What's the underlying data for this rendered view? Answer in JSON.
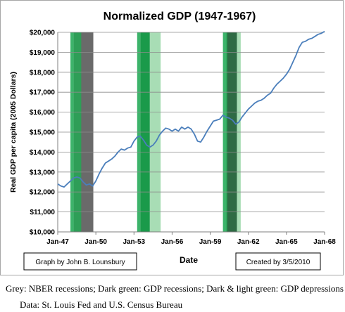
{
  "chart_data": {
    "type": "line",
    "title": "Normalized GDP (1947-1967)",
    "xlabel": "Date",
    "ylabel": "Real GDP per capita  (2005 Dollars)",
    "xlim": [
      1947.0,
      1968.0
    ],
    "ylim": [
      10000,
      20000
    ],
    "x_ticks": [
      {
        "value": 1947,
        "label": "Jan-47"
      },
      {
        "value": 1950,
        "label": "Jan-50"
      },
      {
        "value": 1953,
        "label": "Jan-53"
      },
      {
        "value": 1956,
        "label": "Jan-56"
      },
      {
        "value": 1959,
        "label": "Jan-59"
      },
      {
        "value": 1962,
        "label": "Jan-62"
      },
      {
        "value": 1965,
        "label": "Jan-65"
      },
      {
        "value": 1968,
        "label": "Jan-68"
      }
    ],
    "y_ticks": [
      {
        "value": 10000,
        "label": "$10,000"
      },
      {
        "value": 11000,
        "label": "$11,000"
      },
      {
        "value": 12000,
        "label": "$12,000"
      },
      {
        "value": 13000,
        "label": "$13,000"
      },
      {
        "value": 14000,
        "label": "$14,000"
      },
      {
        "value": 15000,
        "label": "$15,000"
      },
      {
        "value": 16000,
        "label": "$16,000"
      },
      {
        "value": 17000,
        "label": "$17,000"
      },
      {
        "value": 18000,
        "label": "$18,000"
      },
      {
        "value": 19000,
        "label": "$19,000"
      },
      {
        "value": 20000,
        "label": "$20,000"
      }
    ],
    "grid": {
      "horizontal": true,
      "vertical": false
    },
    "legend": "none",
    "shaded_bands": [
      {
        "kind": "gdp-recession",
        "start": 1948.25,
        "end": 1949.75,
        "color": "#2e9e57"
      },
      {
        "kind": "gdp-depression",
        "start": 1948.0,
        "end": 1948.25,
        "color": "#3cb36a"
      },
      {
        "kind": "nber-recession",
        "start": 1948.85,
        "end": 1949.8,
        "color": "#6a6a6a"
      },
      {
        "kind": "gdp-depression",
        "start": 1953.25,
        "end": 1953.5,
        "color": "#3cb36a"
      },
      {
        "kind": "gdp-recession",
        "start": 1953.5,
        "end": 1954.25,
        "color": "#1a9a4a"
      },
      {
        "kind": "gdp-depression",
        "start": 1954.25,
        "end": 1955.1,
        "color": "#a8ddb5"
      },
      {
        "kind": "gdp-depression",
        "start": 1960.0,
        "end": 1960.25,
        "color": "#3cb36a"
      },
      {
        "kind": "gdp-recession",
        "start": 1960.25,
        "end": 1961.1,
        "color": "#1f9e4e"
      },
      {
        "kind": "nber-recession",
        "start": 1960.35,
        "end": 1961.1,
        "color": "#2e6b44"
      },
      {
        "kind": "gdp-depression",
        "start": 1961.1,
        "end": 1961.4,
        "color": "#a8ddb5"
      }
    ],
    "series": [
      {
        "color": "#4a7ebb",
        "points": [
          [
            1947.0,
            12400
          ],
          [
            1947.25,
            12300
          ],
          [
            1947.5,
            12250
          ],
          [
            1947.75,
            12400
          ],
          [
            1948.0,
            12550
          ],
          [
            1948.25,
            12700
          ],
          [
            1948.5,
            12750
          ],
          [
            1948.75,
            12700
          ],
          [
            1949.0,
            12500
          ],
          [
            1949.25,
            12350
          ],
          [
            1949.5,
            12400
          ],
          [
            1949.75,
            12300
          ],
          [
            1950.0,
            12550
          ],
          [
            1950.25,
            12900
          ],
          [
            1950.5,
            13200
          ],
          [
            1950.75,
            13450
          ],
          [
            1951.0,
            13550
          ],
          [
            1951.25,
            13650
          ],
          [
            1951.5,
            13800
          ],
          [
            1951.75,
            14000
          ],
          [
            1952.0,
            14150
          ],
          [
            1952.25,
            14100
          ],
          [
            1952.5,
            14200
          ],
          [
            1952.75,
            14250
          ],
          [
            1953.0,
            14550
          ],
          [
            1953.25,
            14750
          ],
          [
            1953.5,
            14800
          ],
          [
            1953.75,
            14600
          ],
          [
            1954.0,
            14350
          ],
          [
            1954.25,
            14250
          ],
          [
            1954.5,
            14350
          ],
          [
            1954.75,
            14550
          ],
          [
            1955.0,
            14850
          ],
          [
            1955.25,
            15050
          ],
          [
            1955.5,
            15200
          ],
          [
            1955.75,
            15150
          ],
          [
            1956.0,
            15050
          ],
          [
            1956.25,
            15150
          ],
          [
            1956.5,
            15050
          ],
          [
            1956.75,
            15250
          ],
          [
            1957.0,
            15150
          ],
          [
            1957.25,
            15250
          ],
          [
            1957.5,
            15150
          ],
          [
            1957.75,
            14900
          ],
          [
            1958.0,
            14550
          ],
          [
            1958.25,
            14500
          ],
          [
            1958.5,
            14750
          ],
          [
            1958.75,
            15050
          ],
          [
            1959.0,
            15300
          ],
          [
            1959.25,
            15550
          ],
          [
            1959.5,
            15600
          ],
          [
            1959.75,
            15650
          ],
          [
            1960.0,
            15850
          ],
          [
            1960.25,
            15750
          ],
          [
            1960.5,
            15700
          ],
          [
            1960.75,
            15600
          ],
          [
            1961.0,
            15400
          ],
          [
            1961.25,
            15500
          ],
          [
            1961.5,
            15750
          ],
          [
            1961.75,
            15950
          ],
          [
            1962.0,
            16150
          ],
          [
            1962.25,
            16300
          ],
          [
            1962.5,
            16450
          ],
          [
            1962.75,
            16550
          ],
          [
            1963.0,
            16600
          ],
          [
            1963.25,
            16700
          ],
          [
            1963.5,
            16850
          ],
          [
            1963.75,
            16950
          ],
          [
            1964.0,
            17200
          ],
          [
            1964.25,
            17400
          ],
          [
            1964.5,
            17550
          ],
          [
            1964.75,
            17700
          ],
          [
            1965.0,
            17900
          ],
          [
            1965.25,
            18150
          ],
          [
            1965.5,
            18500
          ],
          [
            1965.75,
            18850
          ],
          [
            1966.0,
            19250
          ],
          [
            1966.25,
            19500
          ],
          [
            1966.5,
            19550
          ],
          [
            1966.75,
            19650
          ],
          [
            1967.0,
            19700
          ],
          [
            1967.25,
            19800
          ],
          [
            1967.5,
            19900
          ],
          [
            1967.75,
            19950
          ],
          [
            1968.0,
            20050
          ]
        ]
      }
    ],
    "annotations": {
      "author": "Graph by John B. Lounsbury",
      "created": "Created by 3/5/2010"
    }
  },
  "notes": {
    "legend_text": "Grey: NBER recessions; Dark green: GDP recessions; Dark & light green: GDP depressions",
    "source_text": "Data:  St. Louis Fed and U.S. Census Bureau"
  }
}
